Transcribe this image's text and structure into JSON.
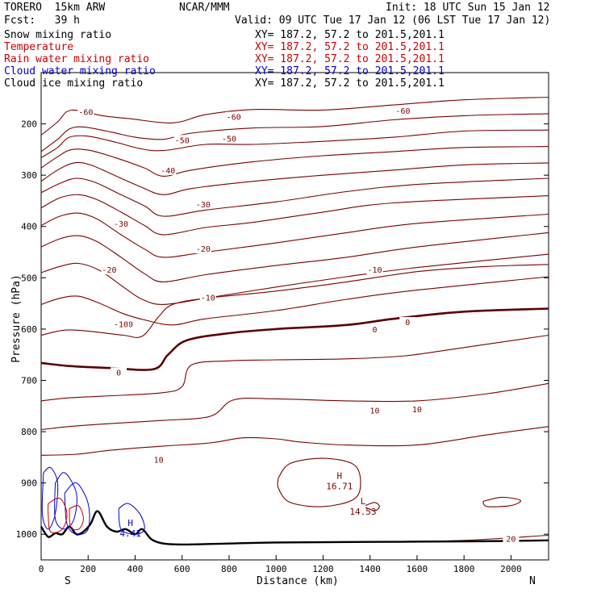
{
  "header": {
    "model": "TORERO  15km ARW",
    "center": "NCAR/MMM",
    "init": "Init: 18 UTC Sun 15 Jan 12",
    "fcst": "Fcst:   39 h",
    "valid": "Valid: 09 UTC Tue 17 Jan 12 (06 LST Tue 17 Jan 12)"
  },
  "legend": [
    {
      "label": "Snow mixing ratio",
      "xy": "XY= 187.2, 57.2 to 201.5,201.1",
      "color": "#000000",
      "xy_color": "#000000"
    },
    {
      "label": "Temperature",
      "xy": "XY= 187.2, 57.2 to 201.5,201.1",
      "color": "#cc0000",
      "xy_color": "#cc0000"
    },
    {
      "label": "Rain water mixing ratio",
      "xy": "XY= 187.2, 57.2 to 201.5,201.1",
      "color": "#cc0000",
      "xy_color": "#cc0000"
    },
    {
      "label": "Cloud water mixing ratio",
      "xy": "XY= 187.2, 57.2 to 201.5,201.1",
      "color": "#0000cc",
      "xy_color": "#0000cc"
    },
    {
      "label": "Cloud ice mixing ratio",
      "xy": "XY= 187.2, 57.2 to 201.5,201.1",
      "color": "#000000",
      "xy_color": "#000000"
    }
  ],
  "chart_data": {
    "type": "contour-cross-section",
    "xlabel": "Distance (km)",
    "ylabel": "Pressure (hPa)",
    "xlim": [
      0,
      2160
    ],
    "ylim": [
      100,
      1050
    ],
    "x_ticks": [
      0,
      200,
      400,
      600,
      800,
      1000,
      1200,
      1400,
      1600,
      1800,
      2000
    ],
    "y_ticks": [
      200,
      300,
      400,
      500,
      600,
      700,
      800,
      900,
      1000
    ],
    "y_tick_labels": [
      "200",
      "300",
      "400",
      "500",
      "600",
      "700",
      "800",
      "900",
      "1000"
    ],
    "x_end_labels": {
      "left": "S",
      "right": "N"
    },
    "contour_color": "#7a0000",
    "zero_color": "#5a0000",
    "terrain_color": "#000000",
    "temperature_contours": [
      {
        "pts": [
          [
            0,
            222
          ],
          [
            70,
            196
          ],
          [
            110,
            176
          ],
          [
            160,
            174
          ],
          [
            260,
            184
          ],
          [
            380,
            190
          ],
          [
            560,
            198
          ],
          [
            700,
            182
          ],
          [
            900,
            172
          ],
          [
            1200,
            173
          ],
          [
            1500,
            163
          ],
          [
            1800,
            153
          ],
          [
            2160,
            148
          ]
        ]
      },
      {
        "pts": [
          [
            0,
            254
          ],
          [
            70,
            230
          ],
          [
            120,
            210
          ],
          [
            180,
            206
          ],
          [
            300,
            216
          ],
          [
            400,
            226
          ],
          [
            520,
            230
          ],
          [
            640,
            218
          ],
          [
            900,
            208
          ],
          [
            1200,
            205
          ],
          [
            1500,
            192
          ],
          [
            1800,
            184
          ],
          [
            2160,
            180
          ]
        ]
      },
      {
        "pts": [
          [
            0,
            266
          ],
          [
            70,
            246
          ],
          [
            120,
            226
          ],
          [
            200,
            224
          ],
          [
            320,
            236
          ],
          [
            420,
            248
          ],
          [
            520,
            252
          ],
          [
            700,
            240
          ],
          [
            900,
            240
          ],
          [
            1200,
            234
          ],
          [
            1500,
            226
          ],
          [
            1800,
            214
          ],
          [
            2160,
            212
          ]
        ]
      },
      {
        "pts": [
          [
            0,
            286
          ],
          [
            70,
            264
          ],
          [
            130,
            250
          ],
          [
            210,
            252
          ],
          [
            330,
            268
          ],
          [
            440,
            286
          ],
          [
            520,
            302
          ],
          [
            640,
            290
          ],
          [
            900,
            274
          ],
          [
            1200,
            262
          ],
          [
            1500,
            254
          ],
          [
            1800,
            246
          ],
          [
            2160,
            244
          ]
        ]
      },
      {
        "pts": [
          [
            0,
            312
          ],
          [
            70,
            290
          ],
          [
            140,
            276
          ],
          [
            210,
            280
          ],
          [
            320,
            302
          ],
          [
            420,
            322
          ],
          [
            520,
            338
          ],
          [
            640,
            326
          ],
          [
            900,
            312
          ],
          [
            1200,
            300
          ],
          [
            1500,
            290
          ],
          [
            1800,
            280
          ],
          [
            2160,
            276
          ]
        ]
      },
      {
        "pts": [
          [
            0,
            334
          ],
          [
            80,
            316
          ],
          [
            150,
            306
          ],
          [
            230,
            314
          ],
          [
            330,
            336
          ],
          [
            440,
            360
          ],
          [
            520,
            380
          ],
          [
            700,
            368
          ],
          [
            1000,
            352
          ],
          [
            1300,
            332
          ],
          [
            1600,
            318
          ],
          [
            2160,
            306
          ]
        ]
      },
      {
        "pts": [
          [
            0,
            364
          ],
          [
            80,
            344
          ],
          [
            160,
            338
          ],
          [
            240,
            348
          ],
          [
            340,
            372
          ],
          [
            440,
            398
          ],
          [
            520,
            416
          ],
          [
            700,
            402
          ],
          [
            900,
            392
          ],
          [
            1200,
            372
          ],
          [
            1500,
            354
          ],
          [
            2160,
            340
          ]
        ]
      },
      {
        "pts": [
          [
            0,
            398
          ],
          [
            80,
            380
          ],
          [
            160,
            374
          ],
          [
            240,
            386
          ],
          [
            340,
            416
          ],
          [
            440,
            444
          ],
          [
            520,
            460
          ],
          [
            700,
            450
          ],
          [
            1000,
            432
          ],
          [
            1300,
            412
          ],
          [
            1600,
            394
          ],
          [
            2160,
            376
          ]
        ]
      },
      {
        "pts": [
          [
            0,
            440
          ],
          [
            80,
            424
          ],
          [
            160,
            418
          ],
          [
            240,
            430
          ],
          [
            340,
            460
          ],
          [
            440,
            492
          ],
          [
            520,
            508
          ],
          [
            700,
            494
          ],
          [
            1000,
            476
          ],
          [
            1300,
            460
          ],
          [
            1600,
            440
          ],
          [
            2160,
            412
          ]
        ]
      },
      {
        "pts": [
          [
            0,
            490
          ],
          [
            80,
            478
          ],
          [
            160,
            472
          ],
          [
            250,
            486
          ],
          [
            350,
            518
          ],
          [
            430,
            542
          ],
          [
            520,
            552
          ],
          [
            700,
            540
          ],
          [
            1000,
            518
          ],
          [
            1300,
            498
          ],
          [
            1600,
            480
          ],
          [
            2160,
            454
          ]
        ]
      },
      {
        "pts": [
          [
            0,
            552
          ],
          [
            80,
            540
          ],
          [
            160,
            536
          ],
          [
            250,
            550
          ],
          [
            350,
            570
          ],
          [
            440,
            582
          ],
          [
            560,
            592
          ],
          [
            700,
            580
          ],
          [
            1000,
            564
          ],
          [
            1300,
            542
          ],
          [
            1600,
            524
          ],
          [
            2160,
            498
          ]
        ]
      },
      {
        "pts": [
          [
            0,
            612
          ],
          [
            100,
            602
          ],
          [
            200,
            604
          ],
          [
            350,
            612
          ],
          [
            430,
            614
          ],
          [
            500,
            576
          ],
          [
            560,
            552
          ],
          [
            700,
            540
          ],
          [
            1000,
            526
          ],
          [
            1300,
            508
          ],
          [
            1600,
            488
          ],
          [
            1900,
            478
          ],
          [
            2160,
            474
          ]
        ]
      },
      {
        "pts": [
          [
            0,
            666
          ],
          [
            120,
            672
          ],
          [
            300,
            676
          ],
          [
            480,
            678
          ],
          [
            540,
            650
          ],
          [
            620,
            622
          ],
          [
            800,
            608
          ],
          [
            1000,
            600
          ],
          [
            1300,
            592
          ],
          [
            1500,
            580
          ],
          [
            1800,
            566
          ],
          [
            2160,
            560
          ]
        ],
        "bold": true
      },
      {
        "pts": [
          [
            0,
            740
          ],
          [
            120,
            734
          ],
          [
            300,
            730
          ],
          [
            520,
            724
          ],
          [
            600,
            712
          ],
          [
            640,
            670
          ],
          [
            800,
            662
          ],
          [
            1000,
            660
          ],
          [
            1300,
            658
          ],
          [
            1550,
            652
          ],
          [
            1800,
            636
          ],
          [
            2160,
            612
          ]
        ]
      },
      {
        "pts": [
          [
            0,
            796
          ],
          [
            120,
            790
          ],
          [
            300,
            784
          ],
          [
            520,
            778
          ],
          [
            720,
            770
          ],
          [
            820,
            738
          ],
          [
            1000,
            736
          ],
          [
            1300,
            740
          ],
          [
            1600,
            740
          ],
          [
            1900,
            726
          ],
          [
            2160,
            706
          ]
        ]
      },
      {
        "pts": [
          [
            0,
            846
          ],
          [
            150,
            844
          ],
          [
            300,
            836
          ],
          [
            520,
            828
          ],
          [
            720,
            822
          ],
          [
            860,
            812
          ],
          [
            1000,
            814
          ],
          [
            1100,
            820
          ],
          [
            1300,
            826
          ],
          [
            1600,
            826
          ],
          [
            1900,
            806
          ],
          [
            2160,
            790
          ]
        ]
      }
    ],
    "temperature_labels": [
      {
        "x": 190,
        "p": 176,
        "v": "-60"
      },
      {
        "x": 820,
        "p": 186,
        "v": "-60"
      },
      {
        "x": 1540,
        "p": 174,
        "v": "-60"
      },
      {
        "x": 600,
        "p": 231,
        "v": "-50"
      },
      {
        "x": 800,
        "p": 228,
        "v": "-50"
      },
      {
        "x": 540,
        "p": 290,
        "v": "-40"
      },
      {
        "x": 690,
        "p": 356,
        "v": "-30"
      },
      {
        "x": 340,
        "p": 394,
        "v": "-30"
      },
      {
        "x": 690,
        "p": 443,
        "v": "-20"
      },
      {
        "x": 290,
        "p": 484,
        "v": "-20"
      },
      {
        "x": 1420,
        "p": 484,
        "v": "-10"
      },
      {
        "x": 710,
        "p": 538,
        "v": "-10"
      },
      {
        "x": 360,
        "p": 590,
        "v": "-10"
      },
      {
        "x": 340,
        "p": 590,
        "v": "-10"
      },
      {
        "x": 1560,
        "p": 586,
        "v": "0"
      },
      {
        "x": 1420,
        "p": 600,
        "v": "0"
      },
      {
        "x": 330,
        "p": 684,
        "v": "0"
      },
      {
        "x": 1420,
        "p": 758,
        "v": "10"
      },
      {
        "x": 1600,
        "p": 756,
        "v": "10"
      },
      {
        "x": 500,
        "p": 854,
        "v": "10"
      },
      {
        "x": 2000,
        "p": 1008,
        "v": "20"
      }
    ],
    "extrema": [
      {
        "label": "H",
        "value": "16.71",
        "x": 1270,
        "p": 898
      },
      {
        "label": "L",
        "value": "14.53",
        "x": 1370,
        "p": 948
      },
      {
        "label": "H",
        "value": "4.41",
        "x": 380,
        "p": 990
      }
    ],
    "terrain": [
      [
        0,
        985
      ],
      [
        30,
        1005
      ],
      [
        60,
        998
      ],
      [
        90,
        1000
      ],
      [
        120,
        985
      ],
      [
        150,
        1000
      ],
      [
        180,
        995
      ],
      [
        210,
        980
      ],
      [
        240,
        955
      ],
      [
        280,
        985
      ],
      [
        320,
        995
      ],
      [
        360,
        990
      ],
      [
        400,
        1000
      ],
      [
        430,
        990
      ],
      [
        470,
        1010
      ],
      [
        520,
        1018
      ],
      [
        600,
        1020
      ],
      [
        800,
        1018
      ],
      [
        1000,
        1016
      ],
      [
        1400,
        1015
      ],
      [
        1800,
        1014
      ],
      [
        2160,
        1012
      ]
    ]
  }
}
